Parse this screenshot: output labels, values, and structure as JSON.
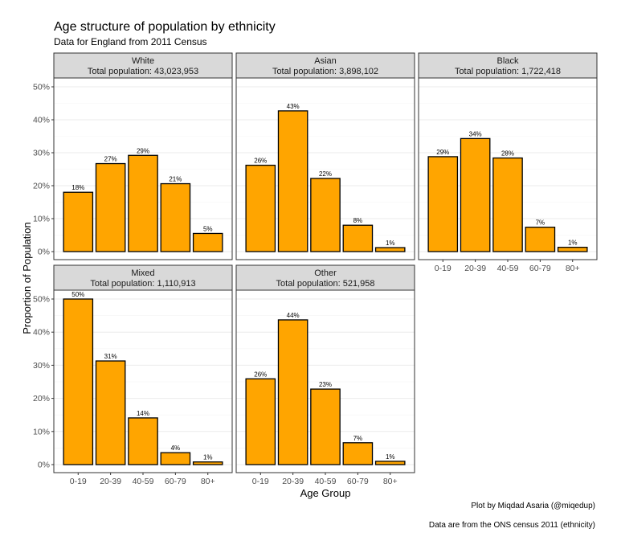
{
  "chart_data": {
    "type": "bar",
    "title": "Age structure of population by ethnicity",
    "subtitle": "Data for England from 2011 Census",
    "xlabel": "Age Group",
    "ylabel": "Proportion of Population",
    "categories": [
      "0-19",
      "20-39",
      "40-59",
      "60-79",
      "80+"
    ],
    "yticks": [
      "0%",
      "10%",
      "20%",
      "30%",
      "40%",
      "50%"
    ],
    "ylim": [
      0,
      0.5
    ],
    "grid": true,
    "bar_color": "#FFA500",
    "panels": [
      {
        "name": "White",
        "total_label": "Total population: 43,023,953",
        "values": [
          0.18,
          0.27,
          0.29,
          0.21,
          0.05
        ],
        "labels": [
          "18%",
          "27%",
          "29%",
          "21%",
          "5%"
        ],
        "heights": [
          0.18,
          0.267,
          0.292,
          0.206,
          0.055
        ]
      },
      {
        "name": "Asian",
        "total_label": "Total population: 3,898,102",
        "values": [
          0.26,
          0.43,
          0.22,
          0.08,
          0.01
        ],
        "labels": [
          "26%",
          "43%",
          "22%",
          "8%",
          "1%"
        ],
        "heights": [
          0.262,
          0.427,
          0.222,
          0.08,
          0.012
        ]
      },
      {
        "name": "Black",
        "total_label": "Total population: 1,722,418",
        "values": [
          0.29,
          0.34,
          0.28,
          0.07,
          0.01
        ],
        "labels": [
          "29%",
          "34%",
          "28%",
          "7%",
          "1%"
        ],
        "heights": [
          0.288,
          0.343,
          0.284,
          0.074,
          0.013
        ]
      },
      {
        "name": "Mixed",
        "total_label": "Total population: 1,110,913",
        "values": [
          0.5,
          0.31,
          0.14,
          0.04,
          0.01
        ],
        "labels": [
          "50%",
          "31%",
          "14%",
          "4%",
          "1%"
        ],
        "heights": [
          0.5,
          0.313,
          0.141,
          0.036,
          0.008
        ]
      },
      {
        "name": "Other",
        "total_label": "Total population: 521,958",
        "values": [
          0.26,
          0.44,
          0.23,
          0.07,
          0.01
        ],
        "labels": [
          "26%",
          "44%",
          "23%",
          "7%",
          "1%"
        ],
        "heights": [
          0.259,
          0.437,
          0.228,
          0.066,
          0.01
        ]
      }
    ],
    "caption_lines": [
      "Plot by Miqdad Asaria (@miqedup)",
      "Data are from the ONS census 2011 (ethnicity)"
    ]
  }
}
